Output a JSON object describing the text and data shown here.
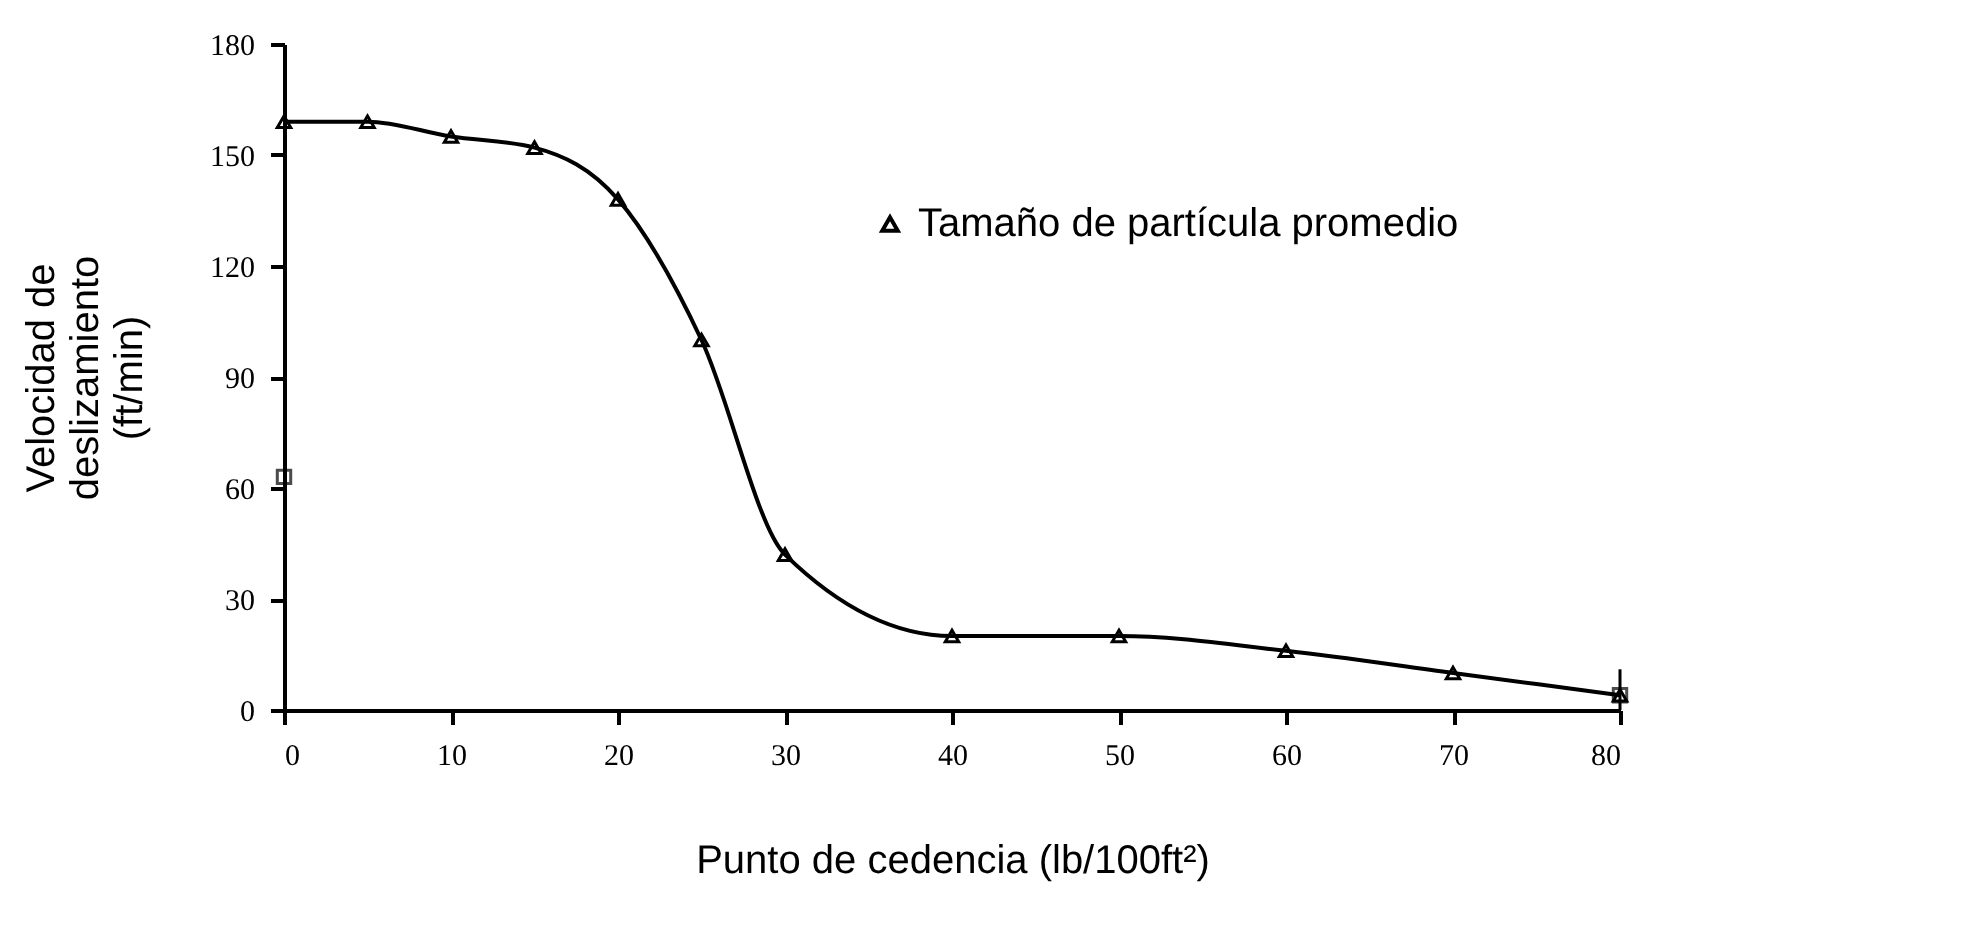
{
  "chart_data": {
    "type": "line",
    "xlabel": "Punto de cedencia (lb/100ft²)",
    "ylabel": "Velocidad de deslizamiento (ft/min)",
    "xlim": [
      0,
      80
    ],
    "xticks": [
      0,
      10,
      20,
      30,
      40,
      50,
      60,
      70,
      80
    ],
    "ylim": [
      0,
      180
    ],
    "yticks": [
      0,
      30,
      60,
      90,
      120,
      150,
      180
    ],
    "grid": false,
    "legend": "top right",
    "line_style": "solid",
    "series": [
      {
        "name": "Tamaño de partícula promedio",
        "marker": "triangle",
        "color": "#000000",
        "x": [
          0,
          5,
          10,
          15,
          20,
          25,
          30,
          40,
          50,
          60,
          70,
          80
        ],
        "values": [
          159,
          159,
          155,
          152,
          138,
          100,
          42,
          20,
          20,
          16,
          10,
          4
        ]
      },
      {
        "type": "scatter",
        "marker": "square",
        "color": "#000000",
        "x": [
          0,
          80
        ],
        "values": [
          63,
          4
        ],
        "errors": [
          null,
          [
            0,
            11
          ]
        ]
      }
    ]
  }
}
